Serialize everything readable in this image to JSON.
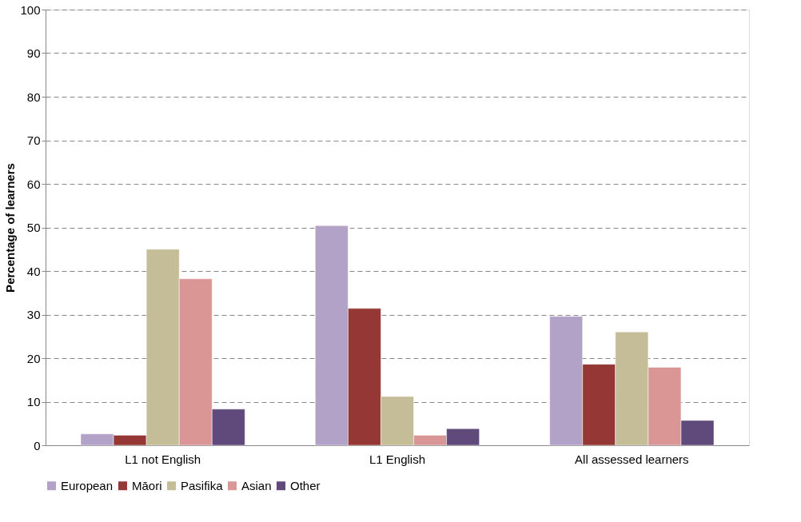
{
  "chart_data": {
    "type": "bar",
    "ylabel": "Percentage of learners",
    "categories": [
      "L1 not English",
      "L1 English",
      "All assessed learners"
    ],
    "series": [
      {
        "name": "European",
        "color": "#b3a2c7",
        "values": [
          2.6,
          50.4,
          29.6
        ]
      },
      {
        "name": "Māori",
        "color": "#953735",
        "values": [
          2.3,
          31.4,
          18.6
        ]
      },
      {
        "name": "Pasifika",
        "color": "#c4bd97",
        "values": [
          45,
          11.2,
          26
        ]
      },
      {
        "name": "Asian",
        "color": "#d99694",
        "values": [
          38.2,
          2.3,
          17.9
        ]
      },
      {
        "name": "Other",
        "color": "#604a7b",
        "values": [
          8.3,
          3.8,
          5.7
        ]
      }
    ],
    "ylim": [
      0,
      100
    ],
    "yticks": [
      0,
      10,
      20,
      30,
      40,
      50,
      60,
      70,
      80,
      90,
      100
    ],
    "grid": "y",
    "legend": "bottom"
  }
}
